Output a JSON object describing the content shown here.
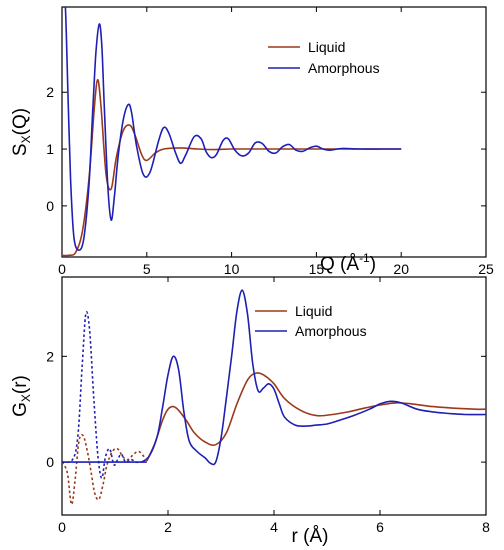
{
  "chart_data": [
    {
      "type": "line",
      "xlabel": {
        "main": "Q (Å",
        "sup": "-1",
        "end": ")"
      },
      "ylabel": {
        "main": "S",
        "sub": "X",
        "end": "(Q)"
      },
      "xlim": [
        0,
        25
      ],
      "ylim": [
        -0.9,
        3.5
      ],
      "xticks": [
        "0",
        "5",
        "10",
        "15",
        "20",
        "25"
      ],
      "yticks": [
        "0",
        "1",
        "2"
      ],
      "legend": {
        "position": "top-right"
      },
      "series": [
        {
          "name": "Liquid",
          "color": "#9b3a1c",
          "style": "solid",
          "x": [
            0.0,
            0.4,
            0.8,
            1.2,
            1.6,
            1.9,
            2.1,
            2.3,
            2.6,
            2.9,
            3.2,
            3.6,
            4.0,
            4.3,
            4.7,
            5.0,
            5.5,
            6.0,
            7.0,
            8.0,
            9.0,
            10.0,
            12.0,
            15.0,
            20.0
          ],
          "y": [
            -0.87,
            -0.87,
            -0.82,
            -0.45,
            0.5,
            1.7,
            2.22,
            1.75,
            0.55,
            0.3,
            0.85,
            1.32,
            1.42,
            1.25,
            0.9,
            0.8,
            0.93,
            1.0,
            1.02,
            1.0,
            0.99,
            1.0,
            1.0,
            1.0,
            1.0
          ]
        },
        {
          "name": "Amorphous",
          "color": "#1e20b4",
          "style": "solid",
          "x": [
            0.0,
            0.2,
            0.35,
            0.5,
            0.7,
            1.0,
            1.3,
            1.6,
            1.8,
            2.0,
            2.2,
            2.35,
            2.5,
            2.7,
            2.9,
            3.1,
            3.3,
            3.6,
            3.9,
            4.1,
            4.4,
            4.8,
            5.2,
            5.7,
            6.0,
            6.3,
            6.7,
            7.0,
            7.3,
            7.8,
            8.2,
            8.5,
            8.8,
            9.1,
            9.5,
            9.8,
            10.2,
            10.6,
            11.0,
            11.4,
            11.8,
            12.2,
            12.6,
            13.0,
            13.4,
            13.8,
            14.2,
            14.6,
            15.0,
            15.4,
            15.8,
            16.5,
            17.5,
            19.0,
            20.0
          ],
          "y": [
            4.5,
            3.5,
            2.0,
            0.5,
            -0.55,
            -0.78,
            -0.55,
            0.4,
            1.6,
            2.7,
            3.2,
            2.8,
            1.7,
            0.35,
            -0.25,
            0.2,
            0.85,
            1.5,
            1.78,
            1.65,
            1.05,
            0.55,
            0.6,
            1.15,
            1.38,
            1.28,
            0.93,
            0.75,
            0.9,
            1.22,
            1.18,
            0.95,
            0.85,
            0.9,
            1.15,
            1.18,
            0.98,
            0.88,
            0.93,
            1.11,
            1.1,
            0.96,
            0.93,
            1.04,
            1.08,
            0.98,
            0.96,
            1.02,
            1.05,
            1.0,
            0.98,
            1.01,
            1.0,
            1.0,
            1.0
          ]
        }
      ]
    },
    {
      "type": "line",
      "xlabel": {
        "main": "r (Å)"
      },
      "ylabel": {
        "main": "G",
        "sub": "X",
        "end": "(r)"
      },
      "xlim": [
        0,
        8
      ],
      "ylim": [
        -1.0,
        3.5
      ],
      "xticks": [
        "0",
        "2",
        "4",
        "6",
        "8"
      ],
      "yticks": [
        "0",
        "2"
      ],
      "legend": {
        "position": "top-right"
      },
      "series": [
        {
          "name": "Liquid",
          "color": "#9b3a1c",
          "style": "solid",
          "x": [
            1.6,
            1.75,
            1.9,
            2.0,
            2.1,
            2.2,
            2.35,
            2.5,
            2.7,
            2.9,
            3.1,
            3.3,
            3.5,
            3.65,
            3.8,
            4.0,
            4.2,
            4.5,
            4.8,
            5.1,
            5.4,
            5.7,
            6.0,
            6.3,
            6.6,
            7.0,
            7.4,
            7.8,
            8.0
          ],
          "y": [
            0.02,
            0.35,
            0.8,
            1.0,
            1.05,
            0.98,
            0.78,
            0.55,
            0.38,
            0.33,
            0.55,
            1.1,
            1.55,
            1.68,
            1.65,
            1.48,
            1.2,
            0.98,
            0.88,
            0.9,
            0.95,
            1.02,
            1.08,
            1.12,
            1.1,
            1.05,
            1.02,
            1.0,
            1.0
          ]
        },
        {
          "name": "Amorphous",
          "color": "#1e20b4",
          "style": "solid",
          "x": [
            1.5,
            1.65,
            1.8,
            1.9,
            2.0,
            2.1,
            2.2,
            2.3,
            2.4,
            2.55,
            2.7,
            2.8,
            2.9,
            3.0,
            3.1,
            3.2,
            3.3,
            3.4,
            3.5,
            3.6,
            3.7,
            3.8,
            3.9,
            4.0,
            4.1,
            4.2,
            4.4,
            4.6,
            4.8,
            5.0,
            5.2,
            5.5,
            5.8,
            6.0,
            6.2,
            6.4,
            6.7,
            7.0,
            7.3,
            7.6,
            8.0
          ],
          "y": [
            0.0,
            0.12,
            0.5,
            1.05,
            1.65,
            2.0,
            1.75,
            0.95,
            0.4,
            0.2,
            0.08,
            -0.02,
            0.0,
            0.45,
            1.2,
            2.0,
            2.85,
            3.25,
            2.8,
            1.85,
            1.35,
            1.4,
            1.48,
            1.38,
            1.1,
            0.85,
            0.7,
            0.68,
            0.7,
            0.72,
            0.78,
            0.88,
            1.0,
            1.1,
            1.15,
            1.12,
            1.0,
            0.95,
            0.92,
            0.9,
            0.9
          ]
        },
        {
          "name": "",
          "color": "#1e20b4",
          "style": "dotted",
          "x": [
            0.0,
            0.2,
            0.3,
            0.38,
            0.45,
            0.52,
            0.6,
            0.68,
            0.75,
            0.82,
            0.9,
            0.98,
            1.05,
            1.12,
            1.2,
            1.3,
            1.4,
            1.5
          ],
          "y": [
            0.0,
            0.05,
            0.5,
            1.8,
            2.8,
            2.5,
            1.2,
            0.1,
            -0.3,
            0.1,
            0.25,
            -0.05,
            0.05,
            0.15,
            0.0,
            0.05,
            0.0,
            0.0
          ]
        },
        {
          "name": "",
          "color": "#9b3a1c",
          "style": "dotted",
          "x": [
            0.0,
            0.1,
            0.18,
            0.25,
            0.32,
            0.4,
            0.48,
            0.55,
            0.62,
            0.7,
            0.78,
            0.85,
            0.95,
            1.05,
            1.15,
            1.25,
            1.35,
            1.45,
            1.55,
            1.6
          ],
          "y": [
            0.0,
            -0.2,
            -0.8,
            -0.3,
            0.4,
            0.5,
            0.2,
            -0.2,
            -0.6,
            -0.7,
            -0.4,
            -0.05,
            0.2,
            0.25,
            0.1,
            0.05,
            0.15,
            0.2,
            0.1,
            0.02
          ]
        }
      ]
    }
  ]
}
